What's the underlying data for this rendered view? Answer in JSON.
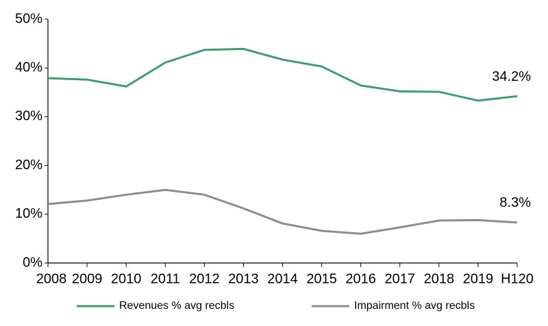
{
  "chart_data": {
    "type": "line",
    "categories": [
      "2008",
      "2009",
      "2010",
      "2011",
      "2012",
      "2013",
      "2014",
      "2015",
      "2016",
      "2017",
      "2018",
      "2019",
      "H120"
    ],
    "series": [
      {
        "name": "Revenues % avg recbls",
        "color": "#3c9d6e",
        "values": [
          37.9,
          37.6,
          36.2,
          41.1,
          43.7,
          43.9,
          41.7,
          40.3,
          36.4,
          35.2,
          35.1,
          33.3,
          34.2
        ],
        "value_labels": [
          null,
          null,
          null,
          null,
          null,
          null,
          null,
          null,
          null,
          null,
          null,
          null,
          "34.2%"
        ]
      },
      {
        "name": "Impairment % avg recbls",
        "color": "#8c8c8c",
        "values": [
          12.1,
          12.8,
          14.0,
          15.0,
          14.0,
          11.2,
          8.1,
          6.6,
          6.0,
          7.3,
          8.7,
          8.8,
          8.3
        ],
        "value_labels": [
          null,
          null,
          null,
          null,
          null,
          null,
          null,
          null,
          null,
          null,
          null,
          null,
          "8.3%"
        ]
      }
    ],
    "ylim": [
      0,
      50
    ],
    "yticks": [
      {
        "value": 0,
        "label": "0%"
      },
      {
        "value": 10,
        "label": "10%"
      },
      {
        "value": 20,
        "label": "20%"
      },
      {
        "value": 30,
        "label": "30%"
      },
      {
        "value": 40,
        "label": "40%"
      },
      {
        "value": 50,
        "label": "50%"
      }
    ],
    "grid": false,
    "legend": "bottom"
  }
}
